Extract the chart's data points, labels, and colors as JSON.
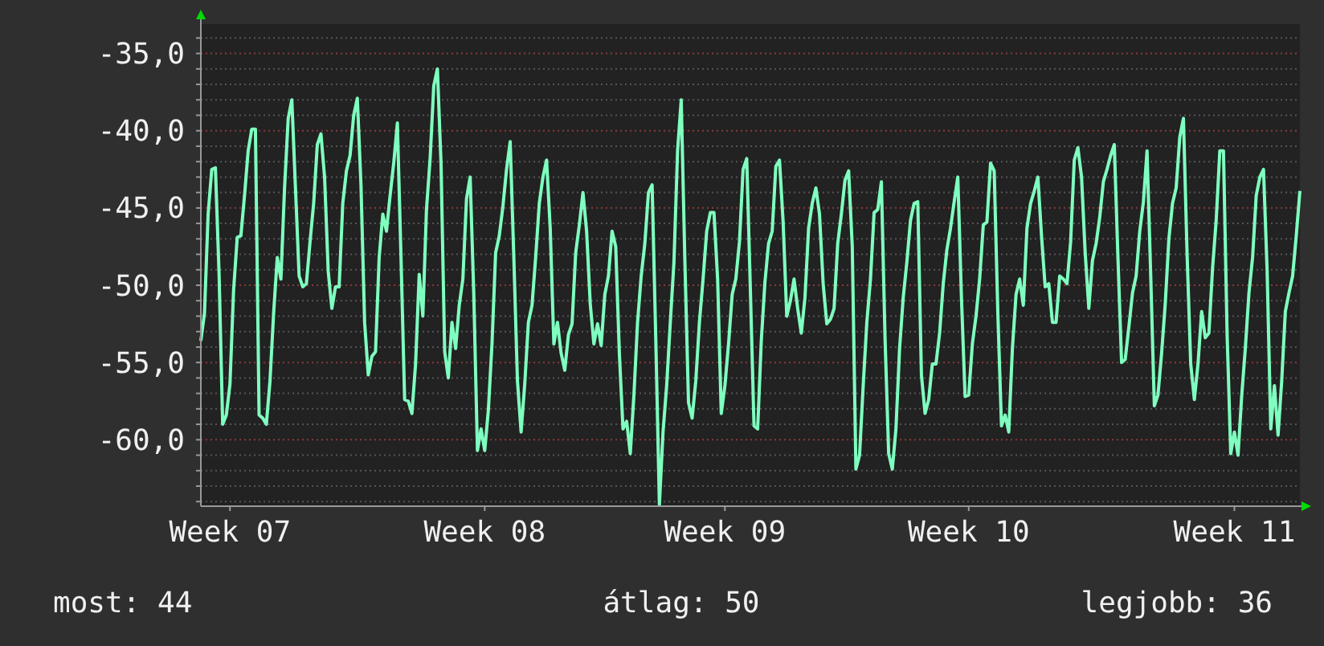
{
  "chart_data": {
    "type": "line",
    "categories": [
      null,
      null,
      null,
      null,
      null,
      null,
      null,
      null,
      "Week 07",
      null,
      null,
      null,
      null,
      null,
      null,
      null,
      null,
      null,
      null,
      null,
      null,
      null,
      null,
      null,
      null,
      null,
      null,
      null,
      null,
      null,
      null,
      null,
      null,
      null,
      null,
      null,
      null,
      null,
      null,
      null,
      null,
      null,
      null,
      null,
      null,
      null,
      null,
      null,
      null,
      null,
      null,
      null,
      null,
      null,
      null,
      null,
      null,
      null,
      null,
      null,
      null,
      null,
      null,
      null,
      null,
      null,
      null,
      null,
      null,
      null,
      null,
      null,
      null,
      null,
      null,
      null,
      null,
      null,
      "Week 08",
      null,
      null,
      null,
      null,
      null,
      null,
      null,
      null,
      null,
      null,
      null,
      null,
      null,
      null,
      null,
      null,
      null,
      null,
      null,
      null,
      null,
      null,
      null,
      null,
      null,
      null,
      null,
      null,
      null,
      null,
      null,
      null,
      null,
      null,
      null,
      null,
      null,
      null,
      null,
      null,
      null,
      null,
      null,
      null,
      null,
      null,
      null,
      null,
      null,
      null,
      null,
      null,
      null,
      null,
      null,
      null,
      null,
      null,
      null,
      null,
      null,
      null,
      null,
      null,
      null,
      "Week 09",
      null,
      null,
      null,
      null,
      null,
      null,
      null,
      null,
      null,
      null,
      null,
      null,
      null,
      null,
      null,
      null,
      null,
      null,
      null,
      null,
      null,
      null,
      null,
      null,
      null,
      null,
      null,
      null,
      null,
      null,
      null,
      null,
      null,
      null,
      null,
      null,
      null,
      null,
      null,
      null,
      null,
      null,
      null,
      null,
      null,
      null,
      null,
      null,
      null,
      null,
      null,
      null,
      null,
      null,
      null,
      null,
      null,
      null,
      null,
      null,
      null,
      null,
      null,
      null,
      null,
      null,
      "Week 10",
      null,
      null,
      null,
      null,
      null,
      null,
      null,
      null,
      null,
      null,
      null,
      null,
      null,
      null,
      null,
      null,
      null,
      null,
      null,
      null,
      null,
      null,
      null,
      null,
      null,
      null,
      null,
      null,
      null,
      null,
      null,
      null,
      null,
      null,
      null,
      null,
      null,
      null,
      null,
      null,
      null,
      null,
      null,
      null,
      null,
      null,
      null,
      null,
      null,
      null,
      null,
      null,
      null,
      null,
      null,
      null,
      null,
      null,
      null,
      null,
      null,
      null,
      null,
      null,
      null,
      null,
      null,
      null,
      null,
      null,
      null,
      null,
      "Week 11",
      null,
      null,
      null,
      null,
      null,
      null,
      null,
      null,
      null,
      null,
      null,
      null,
      null,
      null,
      null,
      null,
      null,
      null
    ],
    "series": [
      {
        "color": "#7fffbf",
        "values": [
          -53.6,
          -51.8,
          -45.4,
          -42.5,
          -42.4,
          -49.2,
          -59.0,
          -58.4,
          -56.4,
          -50.3,
          -46.9,
          -46.8,
          -44.2,
          -41.3,
          -39.9,
          -39.9,
          -58.4,
          -58.6,
          -59.0,
          -56.2,
          -51.8,
          -48.2,
          -49.6,
          -43.7,
          -39.2,
          -38.0,
          -43.7,
          -49.4,
          -50.1,
          -49.9,
          -47.2,
          -44.7,
          -40.9,
          -40.2,
          -43.0,
          -49.1,
          -51.5,
          -50.1,
          -50.1,
          -44.7,
          -42.6,
          -41.6,
          -39.0,
          -37.9,
          -43.5,
          -52.4,
          -55.8,
          -54.6,
          -54.3,
          -48.2,
          -45.4,
          -46.5,
          -44.2,
          -42.1,
          -39.5,
          -48.2,
          -57.4,
          -57.5,
          -58.3,
          -55.1,
          -49.3,
          -52.0,
          -45.1,
          -41.8,
          -37.1,
          -36.0,
          -42.1,
          -54.3,
          -56.0,
          -52.4,
          -54.1,
          -51.3,
          -49.6,
          -44.4,
          -43.0,
          -50.6,
          -60.7,
          -59.3,
          -60.7,
          -58.1,
          -53.8,
          -47.9,
          -46.8,
          -44.9,
          -42.5,
          -40.7,
          -48.2,
          -56.2,
          -59.5,
          -56.4,
          -52.4,
          -51.3,
          -48.2,
          -44.7,
          -43.0,
          -41.9,
          -46.3,
          -53.8,
          -52.4,
          -54.4,
          -55.5,
          -53.2,
          -52.5,
          -47.9,
          -46.1,
          -44.0,
          -46.5,
          -51.2,
          -53.8,
          -52.5,
          -53.9,
          -50.6,
          -49.4,
          -46.5,
          -47.5,
          -54.4,
          -59.3,
          -58.8,
          -60.9,
          -57.1,
          -52.4,
          -49.4,
          -47.3,
          -44.0,
          -43.5,
          -53.4,
          -64.2,
          -59.5,
          -56.5,
          -52.4,
          -48.5,
          -41.3,
          -38.0,
          -48.4,
          -57.6,
          -58.6,
          -56.2,
          -52.4,
          -49.6,
          -46.5,
          -45.3,
          -45.3,
          -49.6,
          -58.3,
          -56.5,
          -53.8,
          -50.6,
          -49.6,
          -47.2,
          -42.5,
          -41.8,
          -50.3,
          -59.1,
          -59.3,
          -53.6,
          -49.8,
          -47.3,
          -46.5,
          -42.3,
          -41.9,
          -45.9,
          -52.0,
          -51.0,
          -49.6,
          -51.5,
          -53.1,
          -50.8,
          -46.3,
          -44.7,
          -43.7,
          -45.4,
          -49.9,
          -52.5,
          -52.2,
          -51.5,
          -47.3,
          -45.4,
          -43.2,
          -42.6,
          -47.5,
          -61.9,
          -61.0,
          -56.5,
          -52.4,
          -49.6,
          -45.3,
          -45.1,
          -43.3,
          -53.4,
          -60.9,
          -61.9,
          -59.3,
          -54.1,
          -50.8,
          -48.5,
          -45.8,
          -44.7,
          -44.6,
          -55.8,
          -58.3,
          -57.4,
          -55.1,
          -55.1,
          -53.1,
          -49.9,
          -47.7,
          -46.3,
          -44.6,
          -43.0,
          -50.8,
          -57.2,
          -57.1,
          -53.8,
          -52.0,
          -49.6,
          -46.1,
          -45.9,
          -42.1,
          -42.6,
          -51.8,
          -59.1,
          -58.4,
          -59.5,
          -54.1,
          -50.6,
          -49.6,
          -51.3,
          -46.3,
          -44.7,
          -43.9,
          -43.0,
          -46.8,
          -50.1,
          -49.9,
          -52.4,
          -52.4,
          -49.4,
          -49.6,
          -49.9,
          -47.2,
          -41.9,
          -41.1,
          -43.0,
          -47.9,
          -51.5,
          -48.4,
          -47.3,
          -45.6,
          -43.3,
          -42.5,
          -41.6,
          -40.9,
          -48.2,
          -55.0,
          -54.8,
          -52.7,
          -50.5,
          -49.4,
          -46.5,
          -44.6,
          -41.3,
          -49.3,
          -57.8,
          -57.1,
          -54.4,
          -51.2,
          -47.0,
          -44.7,
          -43.7,
          -40.4,
          -39.2,
          -48.0,
          -55.1,
          -57.4,
          -55.1,
          -51.7,
          -53.4,
          -53.1,
          -48.9,
          -45.8,
          -41.3,
          -41.3,
          -53.2,
          -60.9,
          -59.5,
          -61.0,
          -57.2,
          -54.1,
          -50.5,
          -48.2,
          -44.2,
          -43.0,
          -42.5,
          -49.1,
          -59.3,
          -56.5,
          -59.7,
          -56.2,
          -51.7,
          -50.5,
          -49.4,
          -46.8,
          -43.9
        ]
      }
    ],
    "ylim": [
      -64.3,
      -33.1
    ],
    "yticks": [
      {
        "value": -35,
        "label": "-35,0"
      },
      {
        "value": -40,
        "label": "-40,0"
      },
      {
        "value": -45,
        "label": "-45,0"
      },
      {
        "value": -50,
        "label": "-50,0"
      },
      {
        "value": -55,
        "label": "-55,0"
      },
      {
        "value": -60,
        "label": "-60,0"
      },
      {
        "value": -64,
        "label": null
      },
      {
        "value": -63,
        "label": null
      },
      {
        "value": -62,
        "label": null
      },
      {
        "value": -61,
        "label": null
      },
      {
        "value": -59,
        "label": null
      },
      {
        "value": -58,
        "label": null
      },
      {
        "value": -57,
        "label": null
      },
      {
        "value": -56,
        "label": null
      },
      {
        "value": -54,
        "label": null
      },
      {
        "value": -53,
        "label": null
      },
      {
        "value": -52,
        "label": null
      },
      {
        "value": -51,
        "label": null
      },
      {
        "value": -49,
        "label": null
      },
      {
        "value": -48,
        "label": null
      },
      {
        "value": -47,
        "label": null
      },
      {
        "value": -46,
        "label": null
      },
      {
        "value": -44,
        "label": null
      },
      {
        "value": -43,
        "label": null
      },
      {
        "value": -42,
        "label": null
      },
      {
        "value": -41,
        "label": null
      },
      {
        "value": -39,
        "label": null
      },
      {
        "value": -38,
        "label": null
      },
      {
        "value": -37,
        "label": null
      },
      {
        "value": -36,
        "label": null
      },
      {
        "value": -34,
        "label": null
      }
    ],
    "grid": "y",
    "annotations": [
      "most: 44",
      "átlag: 50",
      "legjobb: 36"
    ]
  }
}
